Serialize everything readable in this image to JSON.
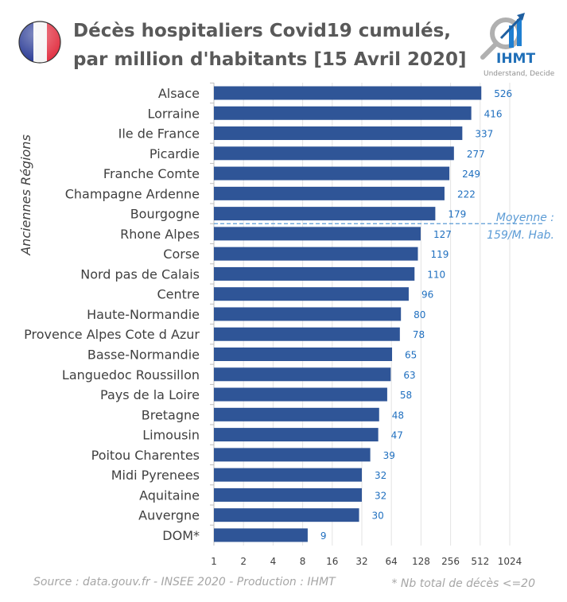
{
  "chart_data": {
    "type": "bar",
    "orientation": "horizontal",
    "title": "Décès hospitaliers Covid19 cumulés,",
    "subtitle": "par million d'habitants [15 Avril 2020]",
    "ylabel": "Anciennes Régions",
    "xlabel": "",
    "x_scale": "log2",
    "xlim": [
      1,
      1024
    ],
    "x_ticks": [
      "1",
      "2",
      "4",
      "8",
      "16",
      "32",
      "64",
      "128",
      "256",
      "512",
      "1024"
    ],
    "grid": true,
    "categories": [
      "Alsace",
      "Lorraine",
      "Ile de France",
      "Picardie",
      "Franche Comte",
      "Champagne Ardenne",
      "Bourgogne",
      "Rhone Alpes",
      "Corse",
      "Nord pas de Calais",
      "Centre",
      "Haute-Normandie",
      "Provence Alpes Cote d Azur",
      "Basse-Normandie",
      "Languedoc Roussillon",
      "Pays de la Loire",
      "Bretagne",
      "Limousin",
      "Poitou Charentes",
      "Midi Pyrenees",
      "Aquitaine",
      "Auvergne",
      "DOM*"
    ],
    "values": [
      526,
      416,
      337,
      277,
      249,
      222,
      179,
      127,
      119,
      110,
      96,
      80,
      78,
      65,
      63,
      58,
      48,
      47,
      39,
      32,
      32,
      30,
      9
    ],
    "bar_color": "#2f5597",
    "label_color": "#1f6fbf",
    "reference_line": {
      "value": 159,
      "label_line1": "Moyenne :",
      "label_line2": "159/M. Hab.",
      "style": "dashed",
      "color": "#5b9bd5"
    }
  },
  "footer": {
    "source": "Source : data.gouv.fr - INSEE 2020 - Production : IHMT",
    "note": "* Nb total de décès <=20"
  },
  "logo": {
    "name": "IHMT",
    "tagline": "Understand, Decide"
  },
  "flag": "france-flag-icon"
}
